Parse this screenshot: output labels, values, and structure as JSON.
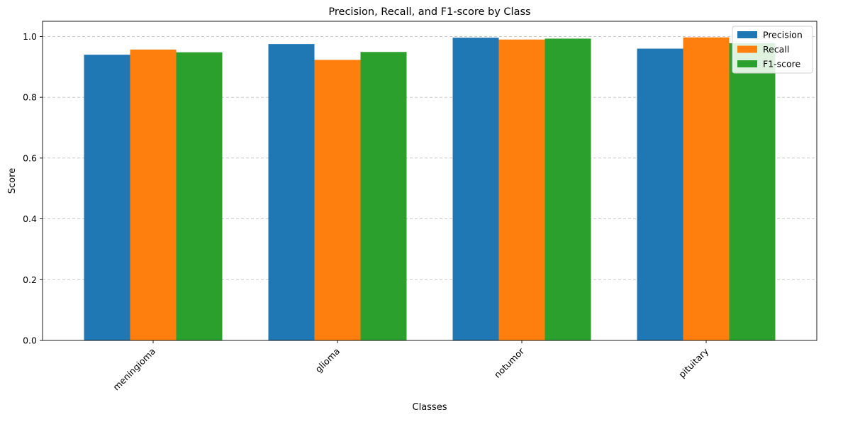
{
  "chart_data": {
    "type": "bar",
    "title": "Precision, Recall, and F1-score by Class",
    "xlabel": "Classes",
    "ylabel": "Score",
    "categories": [
      "meningioma",
      "glioma",
      "notumor",
      "pituitary"
    ],
    "series": [
      {
        "name": "Precision",
        "color": "#1f77b4",
        "values": [
          0.94,
          0.975,
          0.996,
          0.96
        ]
      },
      {
        "name": "Recall",
        "color": "#ff7f0e",
        "values": [
          0.957,
          0.923,
          0.99,
          0.997
        ]
      },
      {
        "name": "F1-score",
        "color": "#2ca02c",
        "values": [
          0.948,
          0.949,
          0.993,
          0.978
        ]
      }
    ],
    "ylim": [
      0,
      1.05
    ],
    "yticks": [
      "0.0",
      "0.2",
      "0.4",
      "0.6",
      "0.8",
      "1.0"
    ],
    "ytick_values": [
      0,
      0.2,
      0.4,
      0.6,
      0.8,
      1.0
    ],
    "grid": "y-dashed",
    "legend_position": "top-right",
    "xtick_rotation": "45"
  }
}
